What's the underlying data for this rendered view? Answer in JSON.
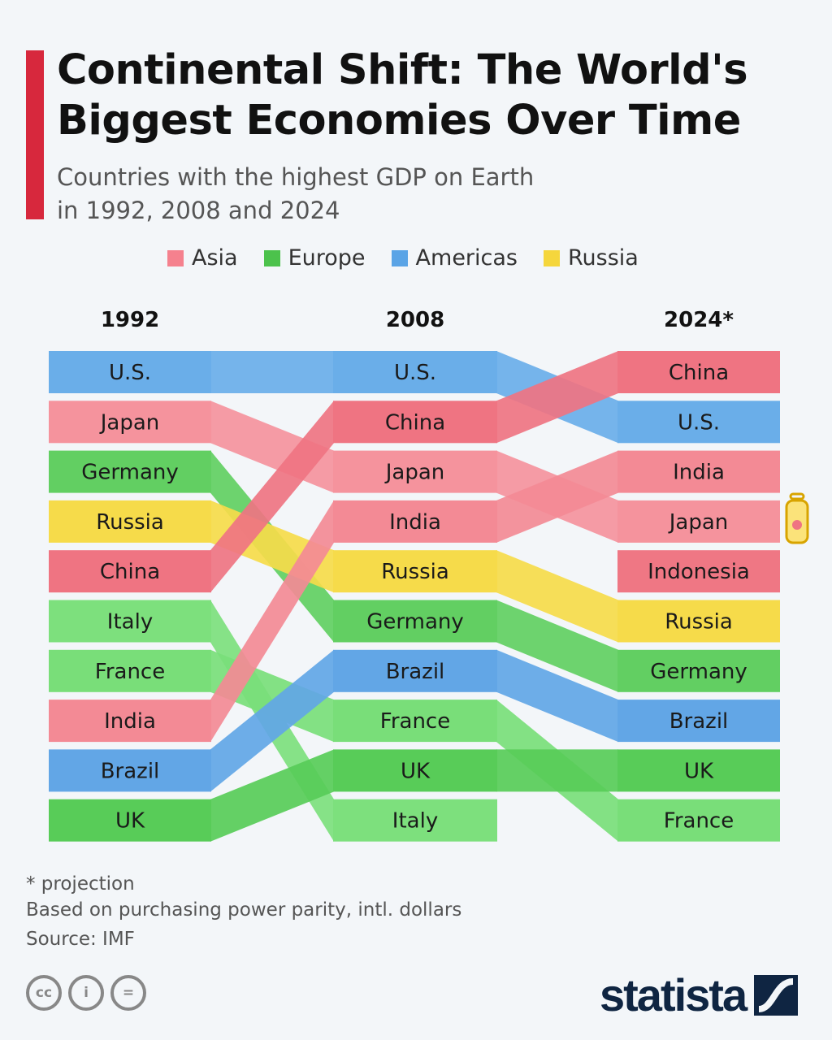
{
  "title": "Continental Shift: The World's Biggest Economies Over Time",
  "subtitle_line1": "Countries with the highest GDP on Earth",
  "subtitle_line2": "in 1992, 2008 and 2024",
  "legend": [
    {
      "label": "Asia",
      "color": "#f5818e"
    },
    {
      "label": "Europe",
      "color": "#4cc24c"
    },
    {
      "label": "Americas",
      "color": "#5aa4e6"
    },
    {
      "label": "Russia",
      "color": "#f5d63c"
    }
  ],
  "notes": [
    "* projection",
    "Based on purchasing power parity, intl. dollars",
    "Source: IMF"
  ],
  "logo": "statista",
  "chart_data": {
    "type": "bump",
    "title": "Continental Shift: The World's Biggest Economies Over Time",
    "years": [
      "1992",
      "2008",
      "2024*"
    ],
    "rankings": [
      [
        "U.S.",
        "Japan",
        "Germany",
        "Russia",
        "China",
        "Italy",
        "France",
        "India",
        "Brazil",
        "UK"
      ],
      [
        "U.S.",
        "China",
        "Japan",
        "India",
        "Russia",
        "Germany",
        "Brazil",
        "France",
        "UK",
        "Italy"
      ],
      [
        "China",
        "U.S.",
        "India",
        "Japan",
        "Indonesia",
        "Russia",
        "Germany",
        "Brazil",
        "UK",
        "France"
      ]
    ],
    "colors": {
      "U.S.": "#6aaee9",
      "Japan": "#f5939d",
      "Germany": "#62cf62",
      "Russia": "#f6db4a",
      "China": "#ef7482",
      "Italy": "#7de07d",
      "France": "#79de79",
      "India": "#f38a95",
      "Brazil": "#62a6e6",
      "UK": "#58cc58",
      "Indonesia": "#ef7784"
    }
  }
}
